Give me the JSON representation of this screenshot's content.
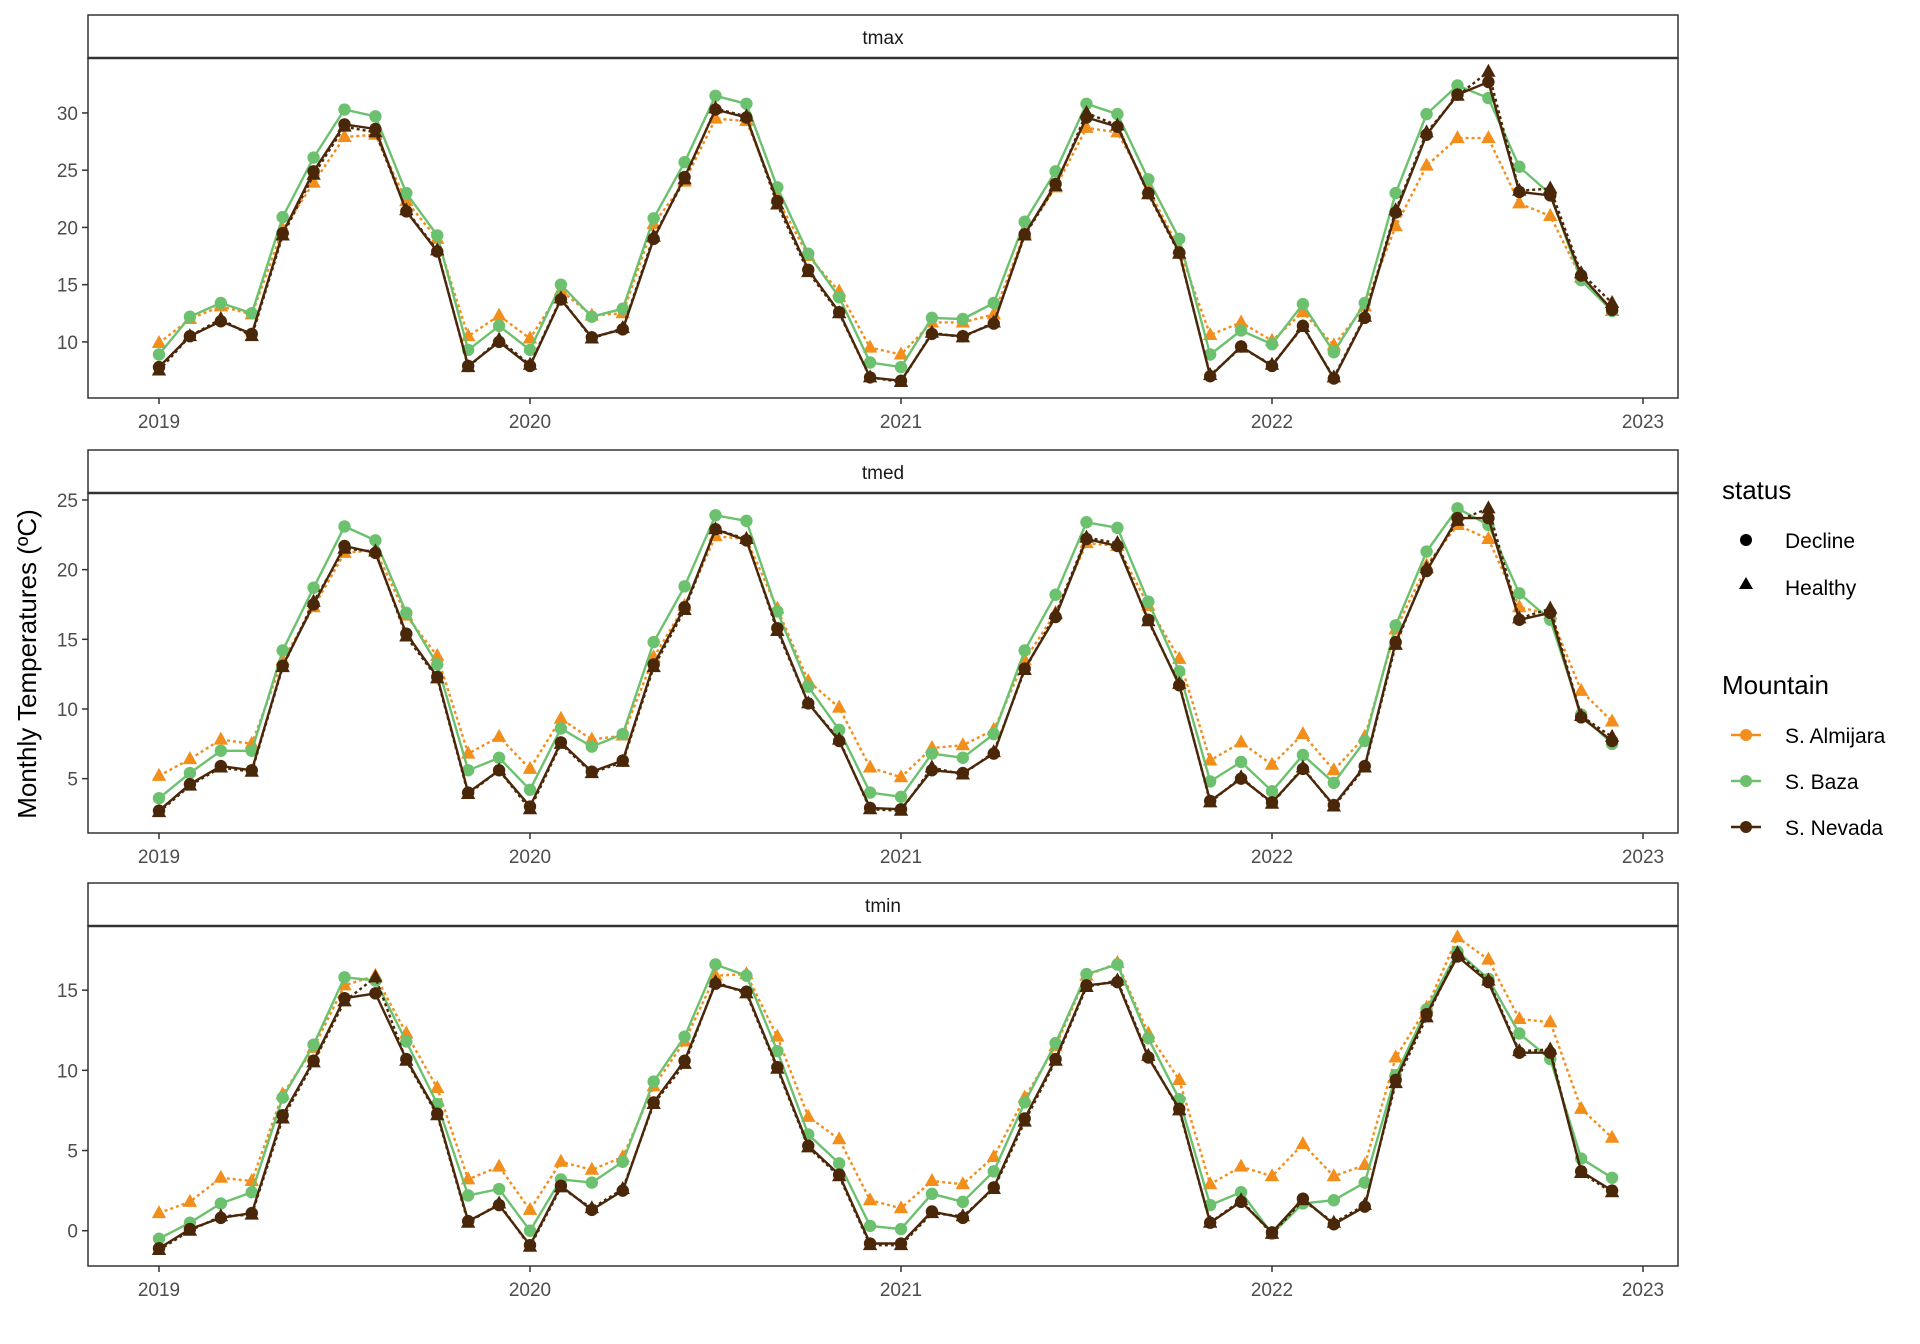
{
  "chart_data": {
    "type": "line",
    "ylabel": "Monthly Temperatures (ºC)",
    "x_axis_ticks": [
      "2019",
      "2020",
      "2021",
      "2022",
      "2023"
    ],
    "x": [
      "2019-01",
      "2019-02",
      "2019-03",
      "2019-04",
      "2019-05",
      "2019-06",
      "2019-07",
      "2019-08",
      "2019-09",
      "2019-10",
      "2019-11",
      "2019-12",
      "2020-01",
      "2020-02",
      "2020-03",
      "2020-04",
      "2020-05",
      "2020-06",
      "2020-07",
      "2020-08",
      "2020-09",
      "2020-10",
      "2020-11",
      "2020-12",
      "2021-01",
      "2021-02",
      "2021-03",
      "2021-04",
      "2021-05",
      "2021-06",
      "2021-07",
      "2021-08",
      "2021-09",
      "2021-10",
      "2021-11",
      "2021-12",
      "2022-01",
      "2022-02",
      "2022-03",
      "2022-04",
      "2022-05",
      "2022-06",
      "2022-07",
      "2022-08",
      "2022-09",
      "2022-10",
      "2022-11",
      "2022-12"
    ],
    "legend": {
      "status": {
        "title": "status",
        "items": [
          {
            "label": "Decline",
            "shape": "circle"
          },
          {
            "label": "Healthy",
            "shape": "triangle"
          }
        ]
      },
      "mountain": {
        "title": "Mountain",
        "items": [
          {
            "label": "S. Almijara",
            "color": "#F28E1B"
          },
          {
            "label": "S. Baza",
            "color": "#6CC16F"
          },
          {
            "label": "S. Nevada",
            "color": "#4A2709"
          }
        ]
      }
    },
    "panels": [
      {
        "label": "tmax",
        "yticks": [
          10,
          15,
          20,
          25,
          30
        ],
        "ylim": [
          5.1,
          34.8
        ],
        "series": [
          {
            "mountain": "S. Almijara",
            "status": "Healthy",
            "values": [
              9.9,
              12.0,
              13.1,
              12.4,
              19.8,
              23.9,
              27.9,
              28.1,
              22.3,
              19.0,
              10.5,
              12.3,
              10.3,
              14.5,
              12.3,
              12.5,
              20.3,
              24.0,
              29.5,
              29.3,
              22.5,
              17.5,
              14.4,
              9.5,
              8.9,
              11.7,
              11.7,
              12.4,
              19.5,
              23.5,
              28.7,
              28.3,
              23.4,
              18.1,
              10.6,
              11.7,
              10.1,
              12.6,
              9.7,
              13.1,
              20.1,
              25.4,
              27.8,
              27.8,
              22.1,
              21.0,
              15.6,
              12.7
            ]
          },
          {
            "mountain": "S. Baza",
            "status": "Decline",
            "values": [
              8.9,
              12.2,
              13.4,
              12.5,
              20.9,
              26.1,
              30.3,
              29.7,
              23.0,
              19.3,
              9.3,
              11.4,
              9.3,
              15.0,
              12.2,
              12.9,
              20.8,
              25.7,
              31.5,
              30.8,
              23.5,
              17.7,
              13.9,
              8.2,
              7.8,
              12.1,
              12.0,
              13.4,
              20.5,
              24.9,
              30.8,
              29.9,
              24.2,
              19.0,
              8.9,
              11.0,
              9.8,
              13.3,
              9.1,
              13.4,
              23.0,
              29.9,
              32.4,
              31.3,
              25.3,
              22.9,
              15.4,
              12.7
            ]
          },
          {
            "mountain": "S. Nevada",
            "status": "Healthy",
            "values": [
              7.5,
              10.5,
              12.0,
              10.5,
              19.3,
              24.6,
              28.8,
              28.3,
              21.5,
              18.0,
              7.8,
              10.2,
              8.0,
              13.8,
              10.3,
              11.2,
              19.2,
              24.2,
              30.4,
              29.7,
              22.0,
              16.1,
              12.5,
              6.9,
              6.5,
              10.8,
              10.4,
              11.7,
              19.3,
              23.6,
              30.0,
              28.9,
              22.9,
              17.7,
              7.1,
              9.5,
              8.0,
              11.3,
              6.9,
              12.2,
              21.5,
              28.3,
              31.5,
              33.6,
              23.2,
              23.4,
              16.0,
              13.4
            ]
          },
          {
            "mountain": "S. Nevada",
            "status": "Decline",
            "values": [
              7.8,
              10.5,
              11.8,
              10.7,
              19.5,
              24.9,
              29.0,
              28.6,
              21.4,
              17.9,
              7.9,
              10.0,
              7.9,
              13.7,
              10.4,
              11.1,
              19.0,
              24.4,
              30.3,
              29.6,
              22.3,
              16.3,
              12.6,
              6.9,
              6.6,
              10.7,
              10.5,
              11.6,
              19.4,
              23.8,
              29.6,
              28.8,
              23.0,
              17.8,
              7.0,
              9.6,
              7.9,
              11.4,
              6.8,
              12.1,
              21.3,
              28.1,
              31.6,
              32.7,
              23.1,
              22.8,
              15.8,
              12.8
            ]
          }
        ]
      },
      {
        "label": "tmed",
        "yticks": [
          5,
          10,
          15,
          20,
          25
        ],
        "ylim": [
          1.1,
          25.5
        ],
        "series": [
          {
            "mountain": "S. Almijara",
            "status": "Healthy",
            "values": [
              5.2,
              6.4,
              7.8,
              7.5,
              13.5,
              17.3,
              21.2,
              21.4,
              16.7,
              13.8,
              6.8,
              8.0,
              5.7,
              9.3,
              7.8,
              8.1,
              13.7,
              17.4,
              22.4,
              22.2,
              17.2,
              12.0,
              10.1,
              5.8,
              5.1,
              7.2,
              7.4,
              8.5,
              13.5,
              16.9,
              21.9,
              21.7,
              17.4,
              13.6,
              6.3,
              7.6,
              6.0,
              8.2,
              5.6,
              8.0,
              15.7,
              20.3,
              23.2,
              22.2,
              17.3,
              16.8,
              11.3,
              9.1
            ]
          },
          {
            "mountain": "S. Baza",
            "status": "Decline",
            "values": [
              3.6,
              5.4,
              7.0,
              7.0,
              14.2,
              18.7,
              23.1,
              22.1,
              16.9,
              13.2,
              5.6,
              6.5,
              4.2,
              8.6,
              7.3,
              8.2,
              14.8,
              18.8,
              23.9,
              23.5,
              17.0,
              11.6,
              8.5,
              4.0,
              3.7,
              6.8,
              6.5,
              8.2,
              14.2,
              18.2,
              23.4,
              23.0,
              17.7,
              12.7,
              4.8,
              6.2,
              4.1,
              6.7,
              4.7,
              7.7,
              16.0,
              21.3,
              24.4,
              23.2,
              18.3,
              16.4,
              9.6,
              7.5
            ]
          },
          {
            "mountain": "S. Nevada",
            "status": "Healthy",
            "values": [
              2.6,
              4.5,
              5.8,
              5.5,
              13.0,
              17.7,
              21.5,
              21.3,
              15.2,
              12.2,
              3.9,
              5.6,
              2.8,
              7.5,
              5.4,
              6.2,
              13.0,
              17.1,
              22.9,
              22.2,
              15.6,
              10.4,
              7.8,
              2.8,
              2.7,
              5.8,
              5.3,
              6.9,
              12.8,
              16.8,
              22.3,
              21.9,
              16.3,
              11.8,
              3.3,
              5.1,
              3.2,
              5.8,
              3.0,
              5.8,
              14.6,
              20.1,
              23.5,
              24.4,
              16.5,
              17.2,
              9.5,
              8.0
            ]
          },
          {
            "mountain": "S. Nevada",
            "status": "Decline",
            "values": [
              2.7,
              4.6,
              5.9,
              5.6,
              13.1,
              17.5,
              21.7,
              21.2,
              15.4,
              12.3,
              4.0,
              5.6,
              3.0,
              7.6,
              5.5,
              6.3,
              13.2,
              17.3,
              22.9,
              22.1,
              15.8,
              10.4,
              7.7,
              2.9,
              2.8,
              5.6,
              5.4,
              6.8,
              12.9,
              16.6,
              22.2,
              21.7,
              16.4,
              11.7,
              3.4,
              5.0,
              3.3,
              5.7,
              3.1,
              5.9,
              14.8,
              19.9,
              23.7,
              23.7,
              16.4,
              16.9,
              9.4,
              7.7
            ]
          }
        ]
      },
      {
        "label": "tmin",
        "yticks": [
          0,
          5,
          10,
          15
        ],
        "ylim": [
          -2.2,
          19.0
        ],
        "series": [
          {
            "mountain": "S. Almijara",
            "status": "Healthy",
            "values": [
              1.1,
              1.8,
              3.3,
              3.1,
              8.5,
              11.4,
              15.3,
              15.9,
              12.3,
              8.9,
              3.2,
              4.0,
              1.3,
              4.3,
              3.8,
              4.6,
              9.0,
              11.8,
              15.9,
              16.0,
              12.1,
              7.1,
              5.7,
              1.9,
              1.4,
              3.1,
              2.9,
              4.6,
              8.3,
              11.5,
              15.9,
              16.7,
              12.3,
              9.4,
              2.9,
              4.0,
              3.4,
              5.4,
              3.4,
              4.1,
              10.8,
              13.9,
              18.3,
              16.9,
              13.2,
              13.0,
              7.6,
              5.8
            ]
          },
          {
            "mountain": "S. Baza",
            "status": "Decline",
            "values": [
              -0.5,
              0.5,
              1.7,
              2.4,
              8.3,
              11.6,
              15.8,
              15.6,
              11.8,
              7.9,
              2.2,
              2.6,
              0.0,
              3.2,
              3.0,
              4.3,
              9.3,
              12.1,
              16.6,
              15.9,
              11.2,
              6.0,
              4.2,
              0.3,
              0.1,
              2.3,
              1.8,
              3.7,
              8.0,
              11.7,
              16.0,
              16.6,
              12.0,
              8.2,
              1.6,
              2.4,
              -0.2,
              1.7,
              1.9,
              3.0,
              9.7,
              13.8,
              17.4,
              15.7,
              12.3,
              10.7,
              4.5,
              3.3
            ]
          },
          {
            "mountain": "S. Nevada",
            "status": "Healthy",
            "values": [
              -1.2,
              0.0,
              0.9,
              1.0,
              7.0,
              10.5,
              14.3,
              15.8,
              10.6,
              7.2,
              0.5,
              1.7,
              -1.0,
              2.7,
              1.4,
              2.6,
              7.9,
              10.4,
              15.5,
              14.8,
              10.1,
              5.2,
              3.4,
              -0.9,
              -0.9,
              1.1,
              0.9,
              2.6,
              6.8,
              10.6,
              15.2,
              15.6,
              10.9,
              7.5,
              0.5,
              1.9,
              -0.2,
              1.9,
              0.5,
              1.6,
              9.2,
              13.3,
              17.3,
              15.6,
              11.2,
              11.3,
              3.6,
              2.4
            ]
          },
          {
            "mountain": "S. Nevada",
            "status": "Decline",
            "values": [
              -1.1,
              0.1,
              0.8,
              1.1,
              7.2,
              10.6,
              14.5,
              14.8,
              10.7,
              7.3,
              0.6,
              1.6,
              -0.9,
              2.8,
              1.3,
              2.5,
              8.0,
              10.6,
              15.4,
              14.9,
              10.2,
              5.3,
              3.5,
              -0.8,
              -0.8,
              1.2,
              0.8,
              2.7,
              7.0,
              10.7,
              15.3,
              15.5,
              10.8,
              7.6,
              0.5,
              1.8,
              -0.1,
              2.0,
              0.4,
              1.5,
              9.4,
              13.5,
              17.1,
              15.5,
              11.1,
              11.1,
              3.7,
              2.5
            ]
          }
        ]
      }
    ]
  }
}
